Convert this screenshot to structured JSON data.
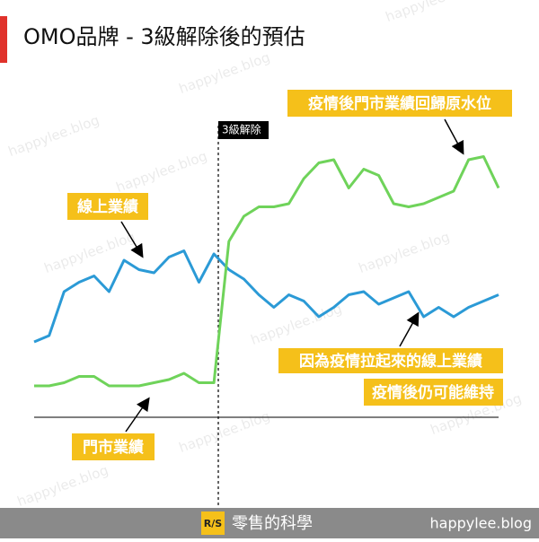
{
  "chart_data": {
    "type": "line",
    "title": "OMO品牌 - 3級解除後的預估",
    "event_label": "3級解除",
    "series": [
      {
        "name": "線上業績",
        "color": "#2b9ad6",
        "values": [
          24,
          26,
          40,
          43,
          45,
          40,
          50,
          47,
          46,
          51,
          53,
          43,
          52,
          47,
          44,
          39,
          35,
          39,
          37,
          32,
          35,
          39,
          40,
          36,
          38,
          40,
          32,
          35,
          32,
          35,
          37,
          39
        ]
      },
      {
        "name": "門市業績",
        "color": "#6fd35a",
        "values": [
          10,
          10,
          11,
          13,
          13,
          10,
          10,
          10,
          11,
          12,
          14,
          11,
          11,
          56,
          64,
          67,
          67,
          68,
          76,
          81,
          82,
          73,
          79,
          77,
          68,
          67,
          68,
          70,
          72,
          82,
          83,
          73
        ]
      }
    ],
    "annotations": [
      "疫情後門市業績回歸原水位",
      "因為疫情拉起來的線上業績",
      "疫情後仍可能維持"
    ],
    "footer": {
      "logo": "R/S",
      "brand": "零售的科學",
      "site": "happylee.blog"
    },
    "watermark": "happylee.blog"
  }
}
